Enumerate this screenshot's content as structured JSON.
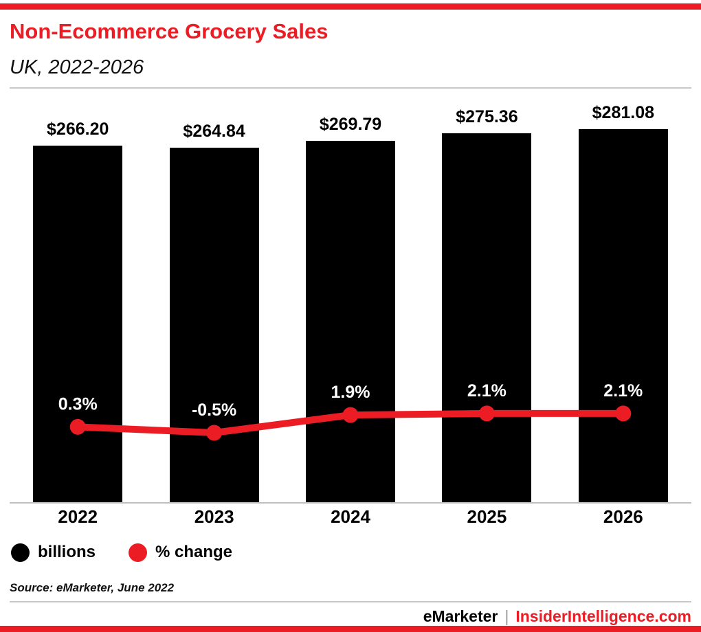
{
  "colors": {
    "accent_red": "#ec1c24",
    "bar_black": "#000000",
    "rule_gray": "#c8c8c8"
  },
  "header": {
    "title": "Non-Ecommerce Grocery Sales",
    "subtitle": "UK, 2022-2026"
  },
  "legend": {
    "items": [
      {
        "label": "billions",
        "color": "#000000"
      },
      {
        "label": "% change",
        "color": "#ec1c24"
      }
    ]
  },
  "footer": {
    "source": "Source: eMarketer, June 2022",
    "brand_left": "eMarketer",
    "divider": "|",
    "brand_right": "InsiderIntelligence.com"
  },
  "chart_data": {
    "type": "bar",
    "title": "Non-Ecommerce Grocery Sales",
    "subtitle": "UK, 2022-2026",
    "categories": [
      "2022",
      "2023",
      "2024",
      "2025",
      "2026"
    ],
    "series": [
      {
        "name": "billions",
        "type": "bar",
        "color": "#000000",
        "values": [
          266.2,
          264.84,
          269.79,
          275.36,
          281.08
        ],
        "labels": [
          "$266.20",
          "$264.84",
          "$269.79",
          "$275.36",
          "$281.08"
        ]
      },
      {
        "name": "% change",
        "type": "line",
        "color": "#ec1c24",
        "values": [
          0.3,
          -0.5,
          1.9,
          2.1,
          2.1
        ],
        "labels": [
          "0.3%",
          "-0.5%",
          "1.9%",
          "2.1%",
          "2.1%"
        ]
      }
    ],
    "ylim": [
      0,
      300
    ],
    "grid": false,
    "legend_position": "bottom-left"
  }
}
